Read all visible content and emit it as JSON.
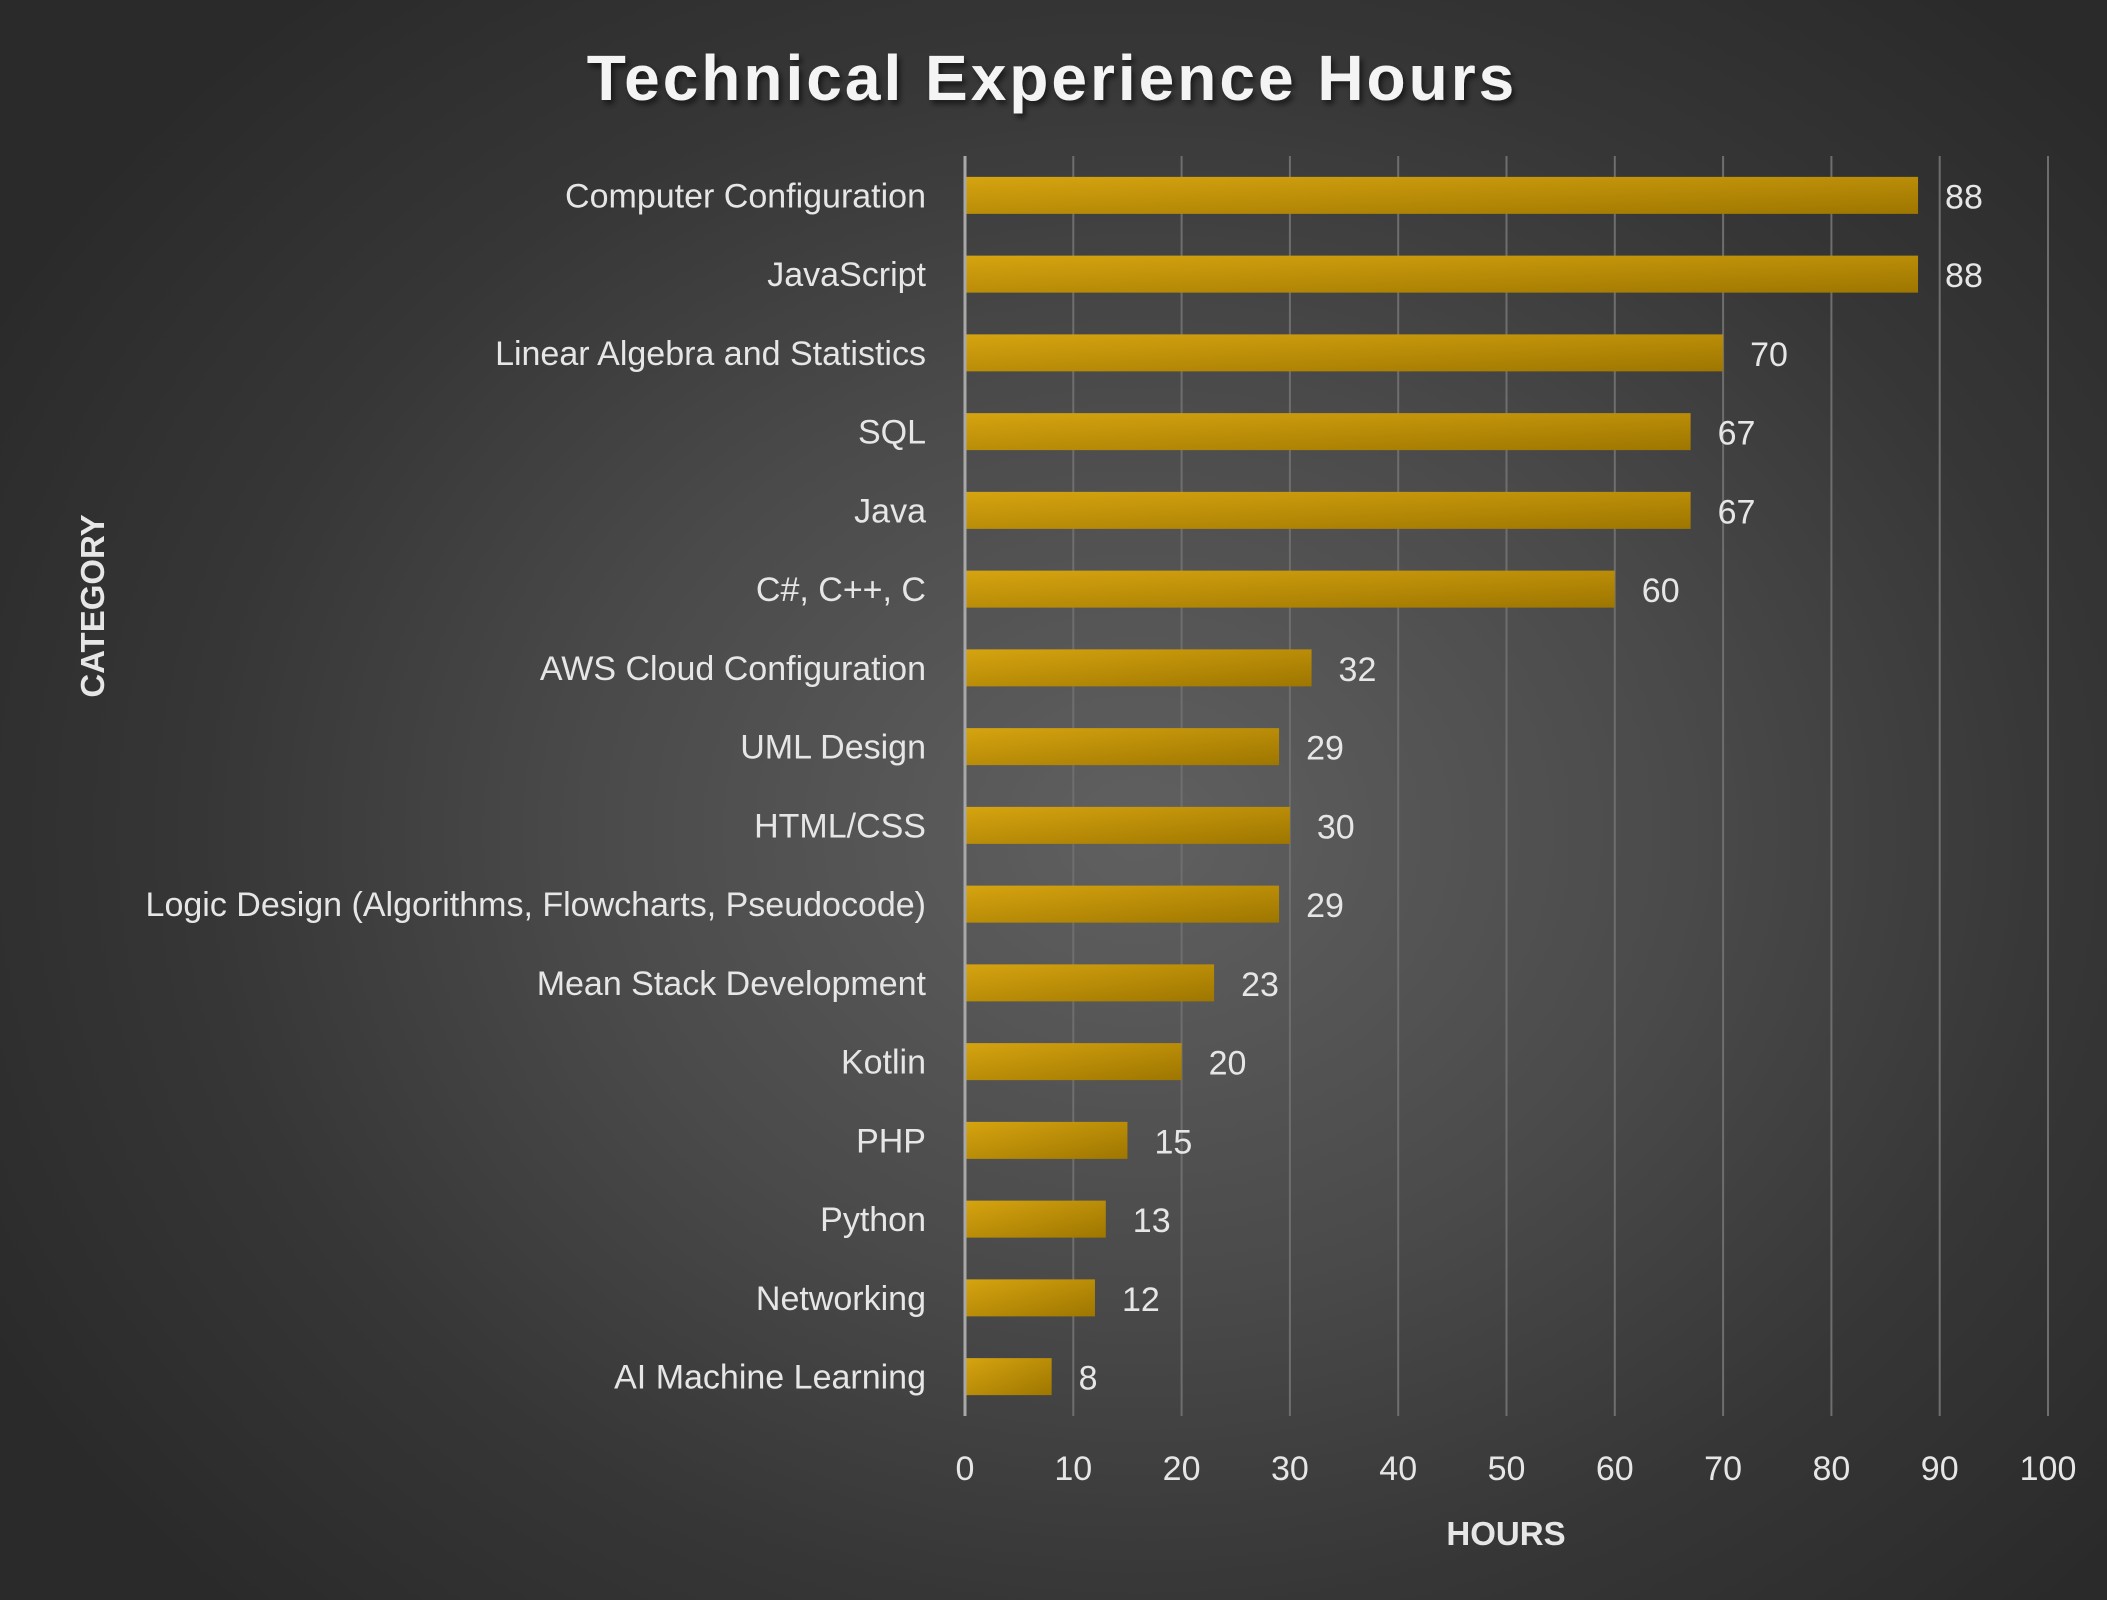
{
  "chart_data": {
    "type": "bar",
    "orientation": "horizontal",
    "title": "Technical Experience Hours",
    "xlabel": "HOURS",
    "ylabel": "CATEGORY",
    "categories": [
      "Computer Configuration",
      "JavaScript",
      "Linear Algebra and Statistics",
      "SQL",
      "Java",
      "C#, C++, C",
      "AWS Cloud Configuration",
      "UML Design",
      "HTML/CSS",
      "Logic Design (Algorithms, Flowcharts, Pseudocode)",
      "Mean Stack Development",
      "Kotlin",
      "PHP",
      "Python",
      "Networking",
      "AI Machine Learning"
    ],
    "values": [
      88,
      88,
      70,
      67,
      67,
      60,
      32,
      29,
      30,
      29,
      23,
      20,
      15,
      13,
      12,
      8
    ],
    "xlim": [
      0,
      100
    ],
    "x_ticks": [
      "0",
      "10",
      "20",
      "30",
      "40",
      "50",
      "60",
      "70",
      "80",
      "90",
      "100"
    ],
    "grid": "vertical",
    "legend": "none",
    "data_labels": true,
    "colors": {
      "bar_light": "#D6A410",
      "bar_dark": "#9E7600",
      "text": "#E6E6E6",
      "title": "#F4F4F4",
      "gridline": "#6E6E6E",
      "axis": "#A8A8A8"
    }
  }
}
